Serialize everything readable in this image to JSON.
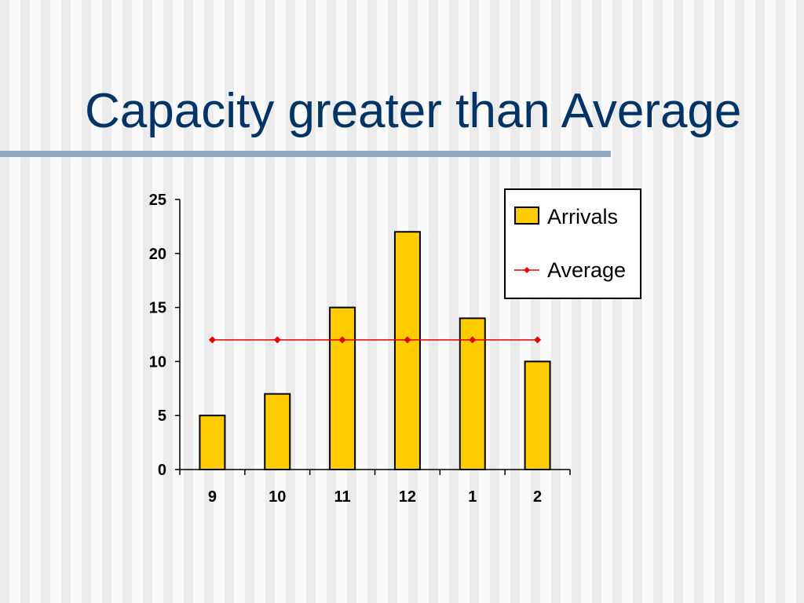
{
  "title": "Capacity greater than Average",
  "colors": {
    "title": "#003366",
    "bar_fill": "#ffcc00",
    "bar_stroke": "#000000",
    "average_line": "#e60000",
    "rule": "#8fa9c3"
  },
  "chart_data": {
    "type": "bar",
    "categories": [
      "9",
      "10",
      "11",
      "12",
      "1",
      "2"
    ],
    "series": [
      {
        "name": "Arrivals",
        "type": "bar",
        "values": [
          5,
          7,
          15,
          22,
          14,
          10
        ]
      },
      {
        "name": "Average",
        "type": "line",
        "marker": "diamond",
        "values": [
          12,
          12,
          12,
          12,
          12,
          12
        ]
      }
    ],
    "title": "",
    "xlabel": "",
    "ylabel": "",
    "ylim": [
      0,
      25
    ],
    "yticks": [
      0,
      5,
      10,
      15,
      20,
      25
    ],
    "grid": false,
    "legend": "top-right"
  }
}
